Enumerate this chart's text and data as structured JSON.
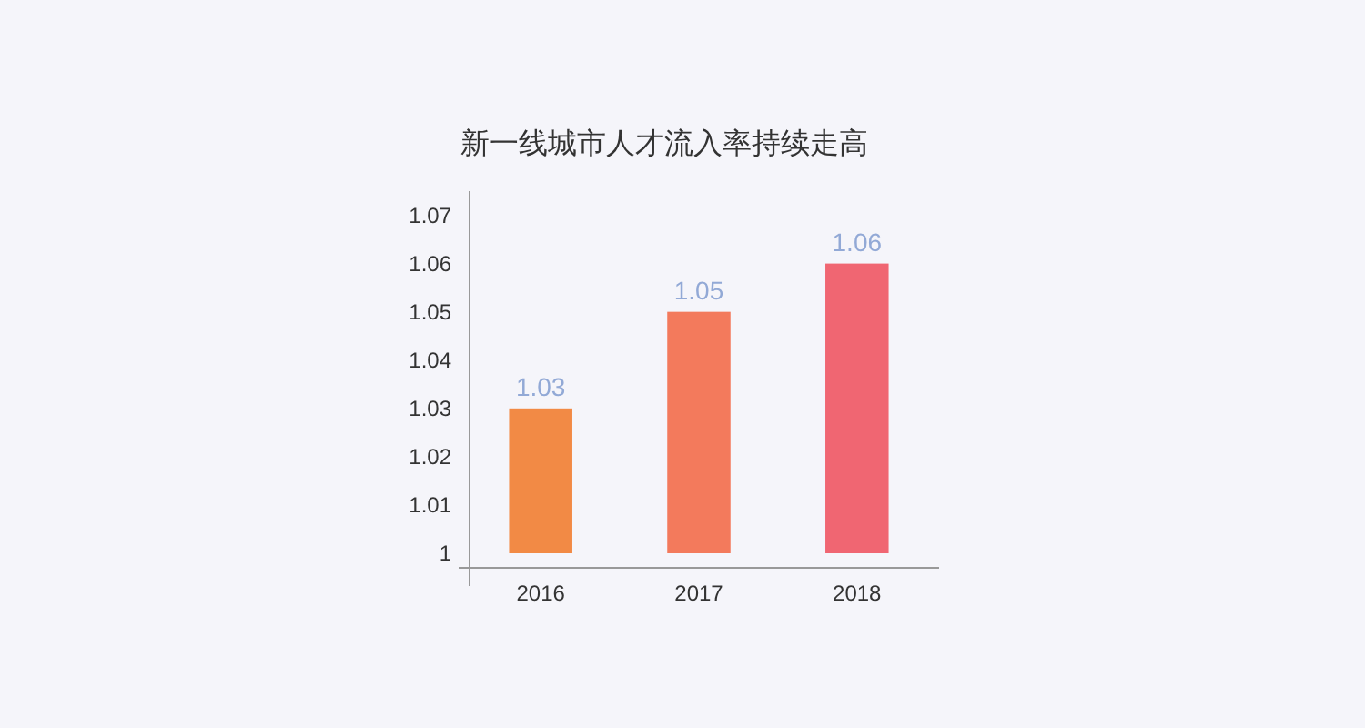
{
  "chart_data": {
    "type": "bar",
    "title": "新一线城市人才流入率持续走高",
    "categories": [
      "2016",
      "2017",
      "2018"
    ],
    "values": [
      1.03,
      1.05,
      1.06
    ],
    "colors": [
      "#f28a45",
      "#f37a5c",
      "#f06672"
    ],
    "ylim": [
      1,
      1.075
    ],
    "yticks": [
      {
        "value": 1,
        "label": "1"
      },
      1.01,
      1.02,
      1.03,
      1.04,
      1.05,
      1.06,
      1.07
    ],
    "data_labels": true
  }
}
